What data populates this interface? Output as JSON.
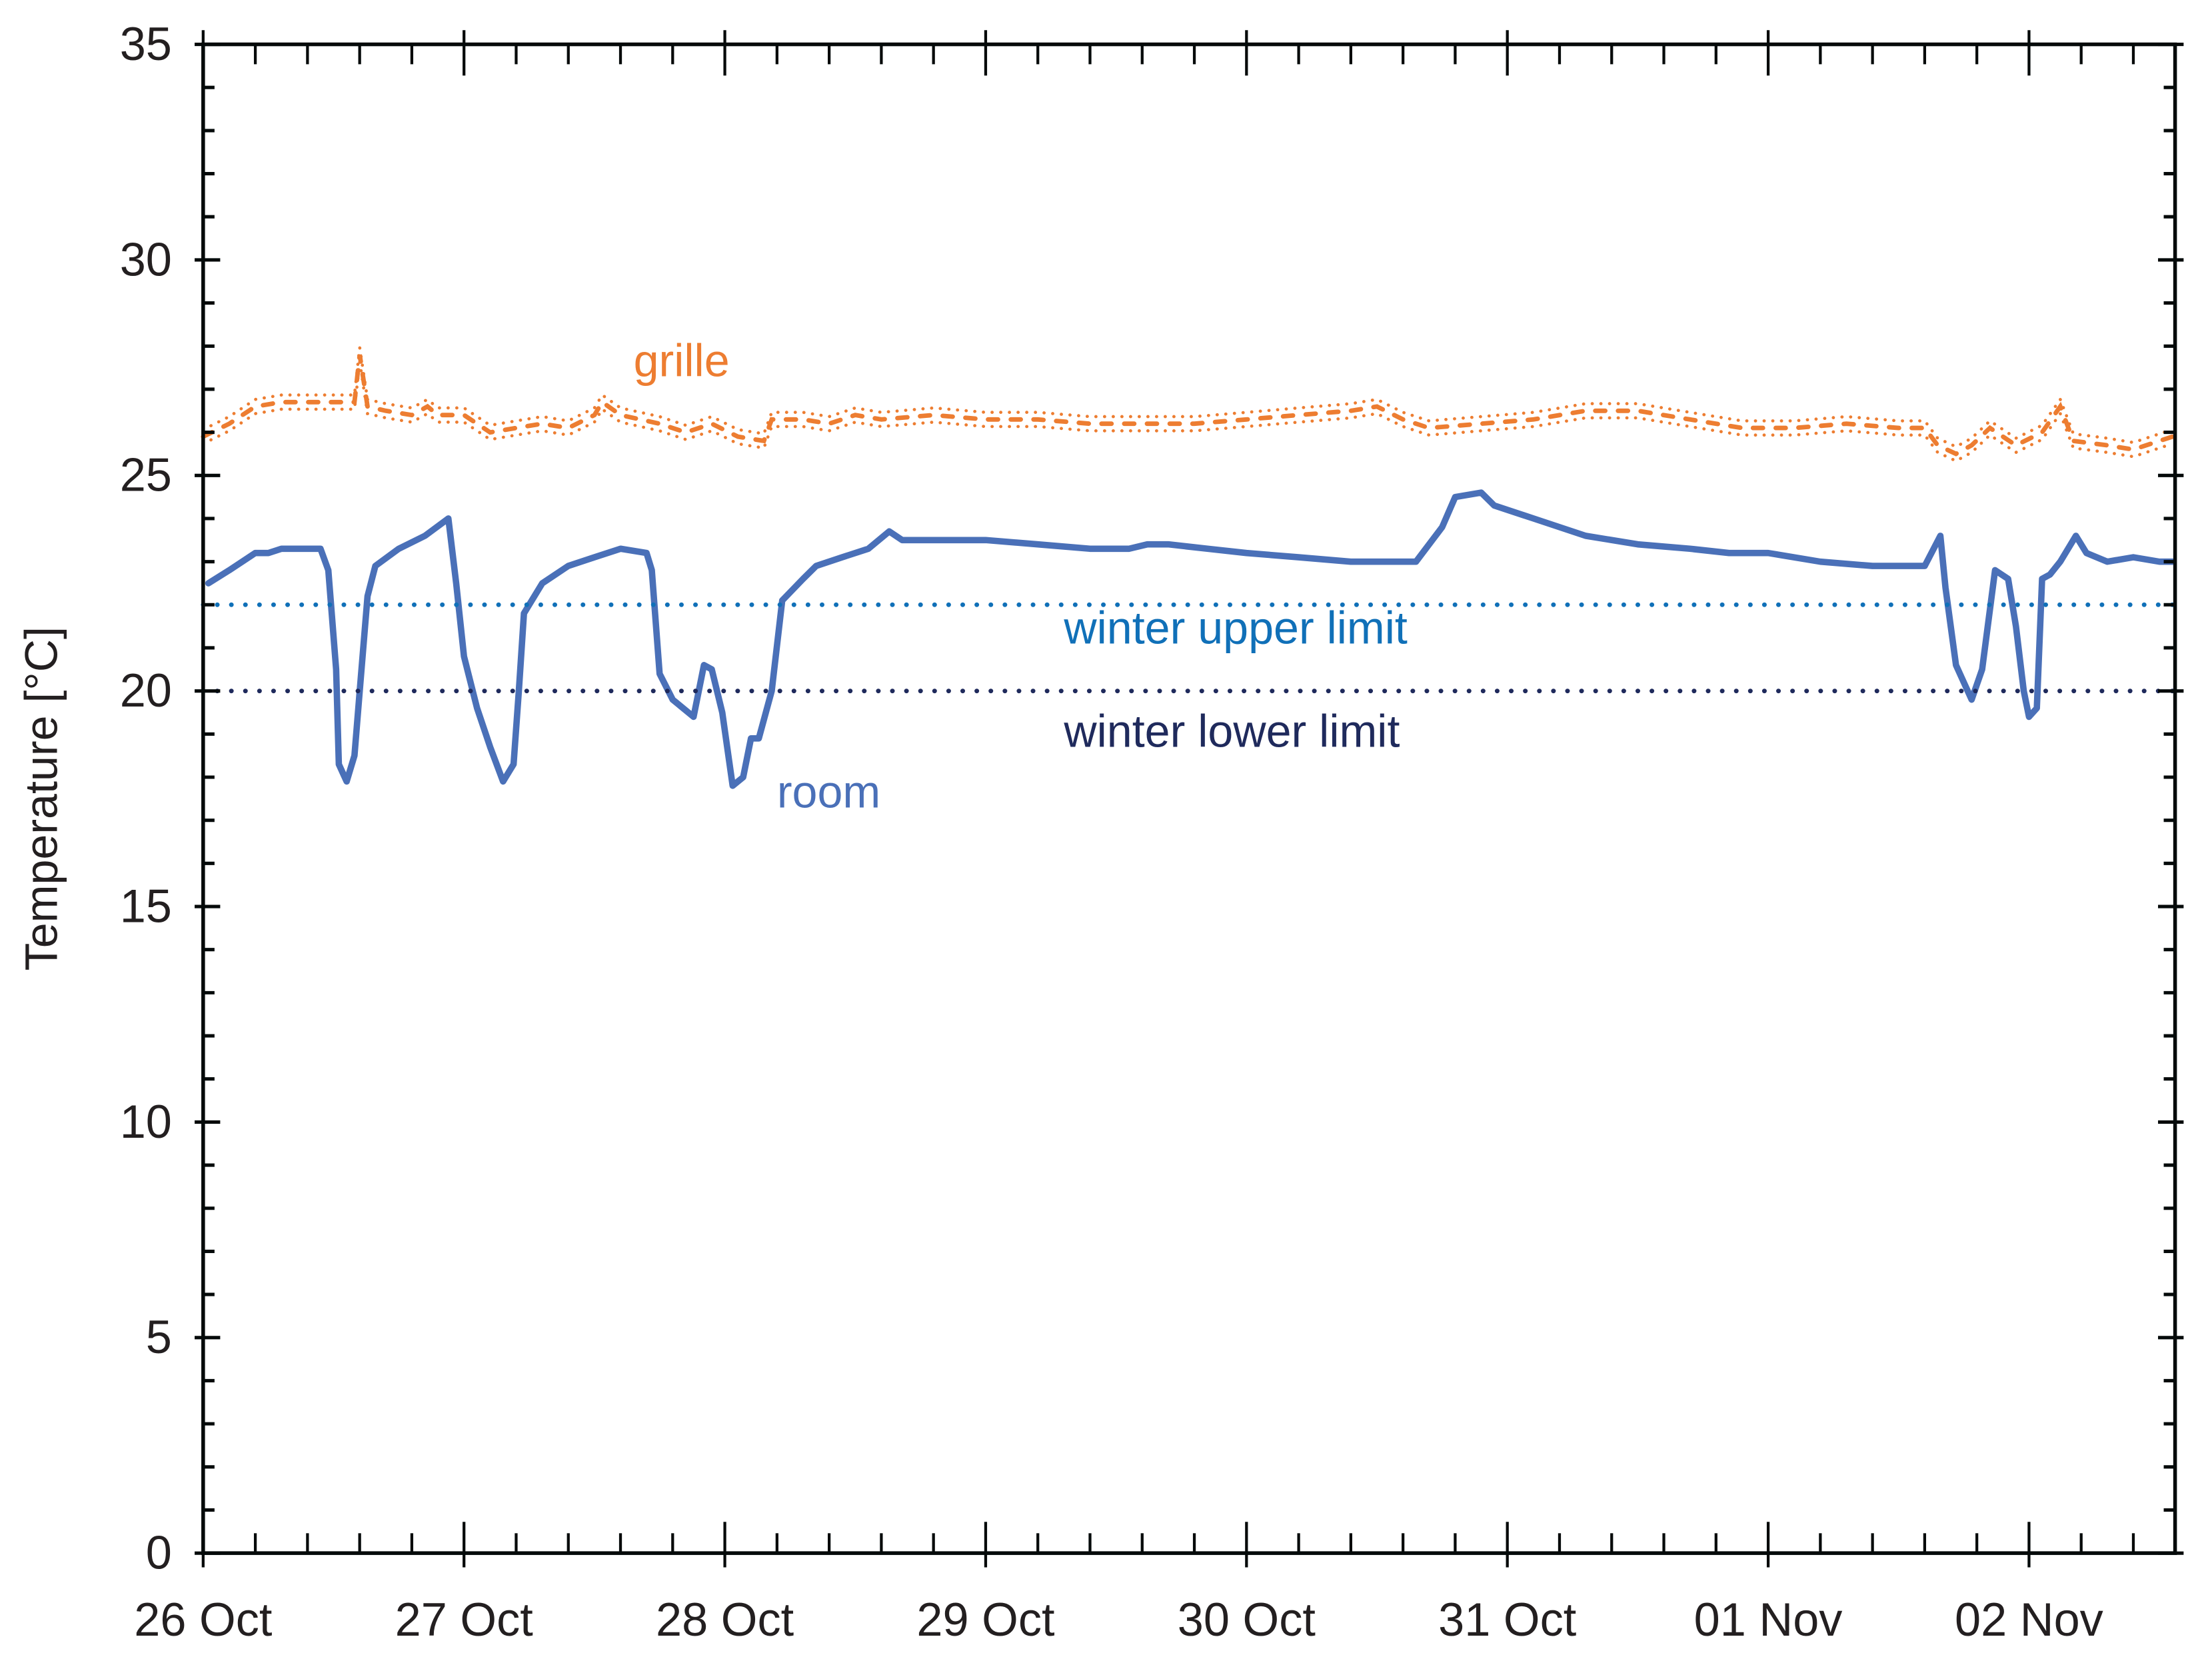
{
  "chart_data": {
    "type": "line",
    "title": "",
    "xlabel": "",
    "ylabel": "Temperature [°C]",
    "ylim": [
      0,
      35
    ],
    "yticks": [
      0,
      5,
      10,
      15,
      20,
      25,
      30,
      35
    ],
    "y_minor_step": 1,
    "x_unit": "days since 26 Oct 00:00",
    "xlim_days": [
      0,
      7.56
    ],
    "x_minor_per_day": 5,
    "categories": [
      "26 Oct",
      "27 Oct",
      "28 Oct",
      "29 Oct",
      "30 Oct",
      "31 Oct",
      "01 Nov",
      "02 Nov"
    ],
    "grid": false,
    "legend": "inline labels",
    "series": [
      {
        "name": "grille",
        "label": "grille",
        "color": "#ED7D31",
        "style": "dotted band",
        "label_pos": [
          1.65,
          27.3
        ],
        "points": [
          [
            0.0,
            25.9
          ],
          [
            0.1,
            26.2
          ],
          [
            0.2,
            26.6
          ],
          [
            0.3,
            26.7
          ],
          [
            0.45,
            26.7
          ],
          [
            0.58,
            26.7
          ],
          [
            0.6,
            27.8
          ],
          [
            0.63,
            26.6
          ],
          [
            0.7,
            26.5
          ],
          [
            0.8,
            26.4
          ],
          [
            0.86,
            26.6
          ],
          [
            0.9,
            26.4
          ],
          [
            1.0,
            26.4
          ],
          [
            1.1,
            26.0
          ],
          [
            1.2,
            26.1
          ],
          [
            1.3,
            26.2
          ],
          [
            1.4,
            26.1
          ],
          [
            1.5,
            26.4
          ],
          [
            1.53,
            26.7
          ],
          [
            1.6,
            26.4
          ],
          [
            1.75,
            26.2
          ],
          [
            1.85,
            26.0
          ],
          [
            1.95,
            26.2
          ],
          [
            2.05,
            25.9
          ],
          [
            2.15,
            25.8
          ],
          [
            2.18,
            26.3
          ],
          [
            2.3,
            26.3
          ],
          [
            2.4,
            26.2
          ],
          [
            2.5,
            26.4
          ],
          [
            2.6,
            26.3
          ],
          [
            2.8,
            26.4
          ],
          [
            3.0,
            26.3
          ],
          [
            3.2,
            26.3
          ],
          [
            3.4,
            26.2
          ],
          [
            3.6,
            26.2
          ],
          [
            3.8,
            26.2
          ],
          [
            4.0,
            26.3
          ],
          [
            4.2,
            26.4
          ],
          [
            4.4,
            26.5
          ],
          [
            4.5,
            26.6
          ],
          [
            4.6,
            26.3
          ],
          [
            4.7,
            26.1
          ],
          [
            4.9,
            26.2
          ],
          [
            5.1,
            26.3
          ],
          [
            5.3,
            26.5
          ],
          [
            5.5,
            26.5
          ],
          [
            5.7,
            26.3
          ],
          [
            5.9,
            26.1
          ],
          [
            6.1,
            26.1
          ],
          [
            6.3,
            26.2
          ],
          [
            6.5,
            26.1
          ],
          [
            6.6,
            26.1
          ],
          [
            6.65,
            25.7
          ],
          [
            6.72,
            25.5
          ],
          [
            6.78,
            25.7
          ],
          [
            6.85,
            26.1
          ],
          [
            6.95,
            25.7
          ],
          [
            7.05,
            26.0
          ],
          [
            7.12,
            26.6
          ],
          [
            7.17,
            25.8
          ],
          [
            7.3,
            25.7
          ],
          [
            7.4,
            25.6
          ],
          [
            7.5,
            25.8
          ],
          [
            7.55,
            25.9
          ]
        ]
      },
      {
        "name": "room",
        "label": "room",
        "color": "#4A70B8",
        "style": "solid",
        "label_pos": [
          2.2,
          17.3
        ],
        "points": [
          [
            0.02,
            22.5
          ],
          [
            0.1,
            22.8
          ],
          [
            0.2,
            23.2
          ],
          [
            0.25,
            23.2
          ],
          [
            0.3,
            23.3
          ],
          [
            0.4,
            23.3
          ],
          [
            0.45,
            23.3
          ],
          [
            0.48,
            22.8
          ],
          [
            0.51,
            20.5
          ],
          [
            0.52,
            18.3
          ],
          [
            0.55,
            17.9
          ],
          [
            0.58,
            18.5
          ],
          [
            0.6,
            20.0
          ],
          [
            0.63,
            22.2
          ],
          [
            0.66,
            22.9
          ],
          [
            0.75,
            23.3
          ],
          [
            0.85,
            23.6
          ],
          [
            0.94,
            24.0
          ],
          [
            0.97,
            22.5
          ],
          [
            1.0,
            20.8
          ],
          [
            1.05,
            19.6
          ],
          [
            1.1,
            18.7
          ],
          [
            1.15,
            17.9
          ],
          [
            1.19,
            18.3
          ],
          [
            1.21,
            20.0
          ],
          [
            1.23,
            21.8
          ],
          [
            1.3,
            22.5
          ],
          [
            1.4,
            22.9
          ],
          [
            1.5,
            23.1
          ],
          [
            1.6,
            23.3
          ],
          [
            1.7,
            23.2
          ],
          [
            1.72,
            22.8
          ],
          [
            1.75,
            20.4
          ],
          [
            1.8,
            19.8
          ],
          [
            1.88,
            19.4
          ],
          [
            1.92,
            20.6
          ],
          [
            1.95,
            20.5
          ],
          [
            1.99,
            19.5
          ],
          [
            2.03,
            17.8
          ],
          [
            2.07,
            18.0
          ],
          [
            2.1,
            18.9
          ],
          [
            2.13,
            18.9
          ],
          [
            2.18,
            20.0
          ],
          [
            2.22,
            22.1
          ],
          [
            2.3,
            22.6
          ],
          [
            2.35,
            22.9
          ],
          [
            2.45,
            23.1
          ],
          [
            2.55,
            23.3
          ],
          [
            2.63,
            23.7
          ],
          [
            2.68,
            23.5
          ],
          [
            2.8,
            23.5
          ],
          [
            3.0,
            23.5
          ],
          [
            3.2,
            23.4
          ],
          [
            3.4,
            23.3
          ],
          [
            3.55,
            23.3
          ],
          [
            3.62,
            23.4
          ],
          [
            3.7,
            23.4
          ],
          [
            3.85,
            23.3
          ],
          [
            4.0,
            23.2
          ],
          [
            4.2,
            23.1
          ],
          [
            4.4,
            23.0
          ],
          [
            4.6,
            23.0
          ],
          [
            4.65,
            23.0
          ],
          [
            4.75,
            23.8
          ],
          [
            4.8,
            24.5
          ],
          [
            4.9,
            24.6
          ],
          [
            4.95,
            24.3
          ],
          [
            5.1,
            24.0
          ],
          [
            5.3,
            23.6
          ],
          [
            5.5,
            23.4
          ],
          [
            5.7,
            23.3
          ],
          [
            5.85,
            23.2
          ],
          [
            6.0,
            23.2
          ],
          [
            6.2,
            23.0
          ],
          [
            6.4,
            22.9
          ],
          [
            6.55,
            22.9
          ],
          [
            6.6,
            22.9
          ],
          [
            6.66,
            23.6
          ],
          [
            6.68,
            22.4
          ],
          [
            6.72,
            20.6
          ],
          [
            6.78,
            19.8
          ],
          [
            6.82,
            20.5
          ],
          [
            6.87,
            22.8
          ],
          [
            6.92,
            22.6
          ],
          [
            6.95,
            21.5
          ],
          [
            6.98,
            20.0
          ],
          [
            7.0,
            19.4
          ],
          [
            7.03,
            19.6
          ],
          [
            7.05,
            22.6
          ],
          [
            7.08,
            22.7
          ],
          [
            7.12,
            23.0
          ],
          [
            7.18,
            23.6
          ],
          [
            7.22,
            23.2
          ],
          [
            7.3,
            23.0
          ],
          [
            7.4,
            23.1
          ],
          [
            7.5,
            23.0
          ],
          [
            7.55,
            23.0
          ]
        ]
      },
      {
        "name": "winter upper limit",
        "label": "winter upper limit",
        "color": "#1070B8",
        "style": "dotted",
        "value": 22,
        "label_pos": [
          3.3,
          21.1
        ]
      },
      {
        "name": "winter lower limit",
        "label": "winter lower limit",
        "color": "#1F2A5C",
        "style": "dotted",
        "value": 20,
        "label_pos": [
          3.3,
          18.7
        ]
      }
    ]
  }
}
